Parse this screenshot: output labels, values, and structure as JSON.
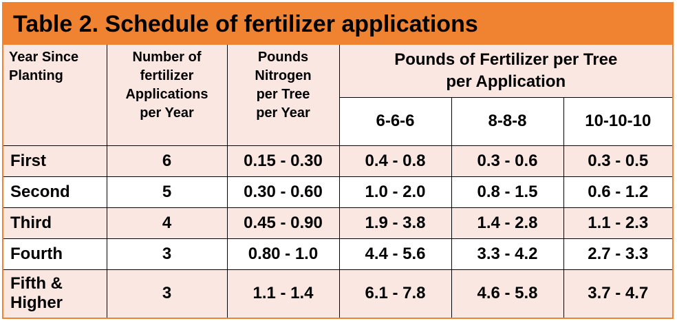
{
  "title": "Table 2. Schedule of fertilizer applications",
  "colors": {
    "accent": "#ef8332",
    "shade": "#fbe7e1"
  },
  "headers": {
    "year": [
      "Year Since",
      "Planting"
    ],
    "apps": [
      "Number of",
      "fertilizer",
      "Applications",
      "per Year"
    ],
    "nitrogen": [
      "Pounds",
      "Nitrogen",
      "per Tree",
      "per Year"
    ],
    "fertilizer_group": [
      "Pounds of Fertilizer per Tree",
      "per Application"
    ],
    "formulas": [
      "6-6-6",
      "8-8-8",
      "10-10-10"
    ]
  },
  "rows": [
    {
      "year": [
        "First"
      ],
      "apps": "6",
      "nitrogen": "0.15 - 0.30",
      "f666": "0.4 - 0.8",
      "f888": "0.3 - 0.6",
      "f101010": "0.3 - 0.5"
    },
    {
      "year": [
        "Second"
      ],
      "apps": "5",
      "nitrogen": "0.30 - 0.60",
      "f666": "1.0 - 2.0",
      "f888": "0.8 - 1.5",
      "f101010": "0.6 - 1.2"
    },
    {
      "year": [
        "Third"
      ],
      "apps": "4",
      "nitrogen": "0.45 - 0.90",
      "f666": "1.9 - 3.8",
      "f888": "1.4 - 2.8",
      "f101010": "1.1 - 2.3"
    },
    {
      "year": [
        "Fourth"
      ],
      "apps": "3",
      "nitrogen": "0.80 - 1.0",
      "f666": "4.4 - 5.6",
      "f888": "3.3 - 4.2",
      "f101010": "2.7 - 3.3"
    },
    {
      "year": [
        "Fifth &",
        "Higher"
      ],
      "apps": "3",
      "nitrogen": "1.1 - 1.4",
      "f666": "6.1 - 7.8",
      "f888": "4.6 - 5.8",
      "f101010": "3.7 - 4.7"
    }
  ]
}
